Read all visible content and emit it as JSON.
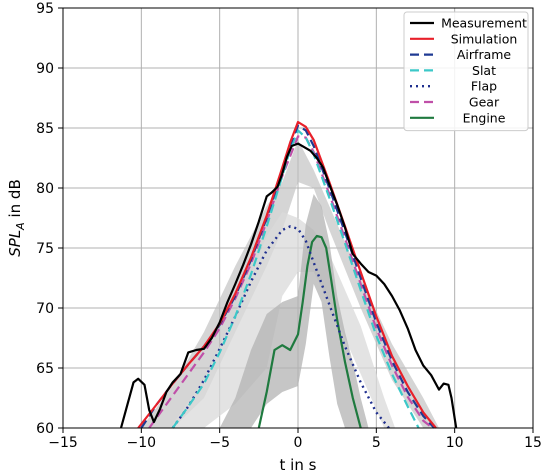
{
  "chart_data": {
    "type": "line",
    "title": "",
    "xlabel": "t in s",
    "ylabel_main": "SPL",
    "ylabel_sub": "A",
    "ylabel_suffix": " in dB",
    "xlim": [
      -15,
      15
    ],
    "ylim": [
      60,
      95
    ],
    "xticks": [
      -15,
      -10,
      -5,
      0,
      5,
      10,
      15
    ],
    "yticks": [
      60,
      65,
      70,
      75,
      80,
      85,
      90,
      95
    ],
    "grid": true,
    "legend_position": "top-right",
    "bands": [
      {
        "color": "#bfbfbf",
        "opacity": 0.65,
        "x": [
          -10,
          -8,
          -6,
          -4,
          -2,
          -1,
          0,
          1,
          2,
          4,
          6,
          8,
          9
        ],
        "upper": [
          60,
          63.5,
          68,
          73.5,
          78.5,
          80.5,
          84,
          81.5,
          78.5,
          72.5,
          67,
          62.5,
          60
        ],
        "lower": [
          60,
          60,
          62.5,
          68,
          73.5,
          76.5,
          80.5,
          80,
          76.5,
          70,
          64,
          60,
          60
        ]
      },
      {
        "color": "#d9d9d9",
        "opacity": 0.75,
        "x": [
          -8.2,
          -6,
          -4,
          -2,
          -1,
          0,
          1,
          2,
          4,
          5.5,
          6.2
        ],
        "upper": [
          60,
          64,
          69.5,
          76,
          78,
          77.5,
          76.5,
          74.5,
          68.5,
          62.5,
          60
        ],
        "lower": [
          60,
          60,
          62,
          65,
          71,
          73,
          73,
          70.5,
          64.5,
          60,
          60
        ]
      },
      {
        "color": "#b3b3b3",
        "opacity": 0.75,
        "x": [
          -5,
          -4,
          -3,
          -2,
          -1,
          0,
          0.5,
          1,
          1.5,
          2,
          2.5,
          3,
          3.5,
          4,
          4.5
        ],
        "upper": [
          60,
          62.5,
          66.5,
          69.5,
          70.5,
          71,
          77,
          79.5,
          78.5,
          75.5,
          71,
          68,
          65.5,
          62.5,
          60
        ],
        "lower": [
          60,
          60,
          60,
          62,
          63,
          63.5,
          67,
          72,
          70.5,
          66,
          62,
          60,
          60,
          60,
          60
        ]
      }
    ],
    "series": [
      {
        "name": "Measurement",
        "color": "#000000",
        "dash": "",
        "width": 2.2,
        "x": [
          -11.3,
          -10.5,
          -10.2,
          -9.8,
          -9.5,
          -9.2,
          -8.8,
          -8.4,
          -8,
          -7.5,
          -7,
          -6.5,
          -6,
          -5.5,
          -5,
          -4.5,
          -4,
          -3.5,
          -3,
          -2.5,
          -2,
          -1.7,
          -1.3,
          -1,
          -0.7,
          -0.4,
          0,
          0.4,
          0.8,
          1.2,
          1.6,
          2,
          2.5,
          3,
          3.5,
          4,
          4.5,
          5,
          5.5,
          6,
          6.5,
          7,
          7.5,
          8,
          8.5,
          9,
          9.3,
          9.6,
          9.8,
          10.1
        ],
        "y": [
          60,
          63.8,
          64.1,
          63.6,
          61.5,
          60.5,
          61.6,
          63,
          63.8,
          64.5,
          66.3,
          66.5,
          66.6,
          67.5,
          68.8,
          70.5,
          72,
          73.6,
          75.3,
          77.2,
          79.3,
          79.6,
          80.1,
          81.2,
          82.6,
          83.5,
          83.7,
          83.4,
          83.1,
          82.5,
          81.7,
          80.3,
          78.6,
          76.7,
          74.5,
          73.7,
          73,
          72.7,
          72,
          71,
          69.8,
          68.3,
          66.5,
          65.2,
          64.4,
          63.2,
          63.7,
          63.6,
          62.5,
          60
        ]
      },
      {
        "name": "Simulation",
        "color": "#e8202a",
        "dash": "",
        "width": 2.2,
        "x": [
          -10.2,
          -9,
          -8,
          -7,
          -6,
          -5,
          -4,
          -3,
          -2,
          -1,
          -0.5,
          0,
          0.5,
          1,
          2,
          3,
          4,
          5,
          6,
          7,
          8,
          8.8
        ],
        "y": [
          60,
          62,
          63.7,
          65.3,
          66.8,
          68.7,
          71.2,
          74.2,
          77.7,
          81.7,
          83.8,
          85.5,
          85.1,
          84,
          80.5,
          76.8,
          73,
          69.3,
          66,
          63.5,
          61.3,
          60
        ]
      },
      {
        "name": "Airframe",
        "color": "#1f3a93",
        "dash": "9,5",
        "width": 2.2,
        "x": [
          -10,
          -9,
          -8,
          -7,
          -6,
          -5,
          -4,
          -3,
          -2,
          -1,
          -0.5,
          0,
          0.5,
          1,
          2,
          3,
          4,
          5,
          6,
          7,
          8,
          8.7
        ],
        "y": [
          60,
          62,
          63.7,
          65.3,
          66.8,
          68.6,
          71,
          74,
          77.5,
          81.5,
          83.6,
          85.2,
          84.8,
          83.5,
          80,
          76.3,
          72.5,
          68.8,
          65.6,
          63,
          61,
          60
        ]
      },
      {
        "name": "Slat",
        "color": "#3cc8c8",
        "dash": "9,5",
        "width": 2.2,
        "x": [
          -8,
          -7,
          -6,
          -5,
          -4,
          -3,
          -2,
          -1,
          -0.5,
          0,
          0.5,
          1,
          2,
          3,
          4,
          5,
          6,
          7,
          7.7
        ],
        "y": [
          60,
          61.8,
          63.7,
          66.3,
          69.3,
          72.8,
          76.8,
          81,
          83.2,
          84.8,
          84.2,
          82.8,
          79.2,
          75.4,
          71.5,
          67.7,
          64.5,
          61.8,
          60
        ]
      },
      {
        "name": "Flap",
        "color": "#1f2f8f",
        "dash": "2,4",
        "width": 2.4,
        "x": [
          -8,
          -7,
          -6,
          -5,
          -4,
          -3,
          -2,
          -1,
          -0.5,
          0,
          0.5,
          1,
          2,
          3,
          4,
          5,
          5.8
        ],
        "y": [
          60,
          61.8,
          64,
          66.6,
          69.3,
          72.2,
          74.8,
          76.5,
          76.8,
          76.6,
          75.6,
          73.8,
          70.3,
          66.8,
          63.8,
          61.3,
          60
        ]
      },
      {
        "name": "Gear",
        "color": "#c04fa8",
        "dash": "9,5",
        "width": 2.2,
        "x": [
          -9.5,
          -8,
          -7,
          -6,
          -5,
          -4,
          -3,
          -2,
          -1,
          0,
          0.5,
          1,
          2,
          3,
          4,
          5,
          6,
          7,
          8,
          8.6
        ],
        "y": [
          60,
          62.7,
          64.5,
          66.3,
          68.3,
          70.8,
          73.7,
          77.2,
          81,
          84.3,
          84.2,
          83,
          79.5,
          75.8,
          72,
          68.3,
          65.2,
          62.6,
          60.6,
          60
        ]
      },
      {
        "name": "Engine",
        "color": "#1f7a3f",
        "dash": "",
        "width": 2.2,
        "x": [
          -2.5,
          -2,
          -1.5,
          -1,
          -0.5,
          0,
          0.3,
          0.6,
          0.9,
          1.2,
          1.5,
          1.8,
          2.1,
          2.5,
          3,
          3.5,
          4
        ],
        "y": [
          60,
          63,
          66.5,
          66.9,
          66.5,
          67.8,
          70.5,
          73.5,
          75.5,
          76,
          75.9,
          75,
          72.5,
          69,
          65.5,
          62.5,
          60
        ]
      }
    ]
  }
}
